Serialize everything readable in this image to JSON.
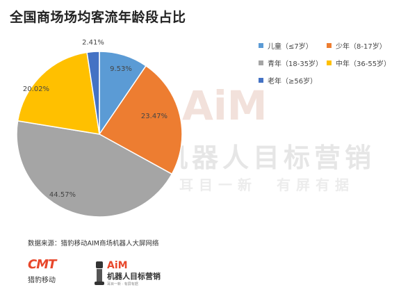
{
  "title": "全国商场场均客流年龄段占比",
  "chart_data": {
    "type": "pie",
    "title": "全国商场场均客流年龄段占比",
    "start_angle_deg": 0,
    "direction": "clockwise",
    "legend_position": "top-right",
    "slices": [
      {
        "label": "儿童（≤7岁）",
        "value": 9.53,
        "display": "9.53%",
        "color": "#5B9BD5"
      },
      {
        "label": "少年（8-17岁）",
        "value": 23.47,
        "display": "23.47%",
        "color": "#ED7D31"
      },
      {
        "label": "青年（18-35岁）",
        "value": 44.57,
        "display": "44.57%",
        "color": "#A5A5A5"
      },
      {
        "label": "中年（36-55岁）",
        "value": 20.02,
        "display": "20.02%",
        "color": "#FFC000"
      },
      {
        "label": "老年（≥56岁）",
        "value": 2.41,
        "display": "2.41%",
        "color": "#4472C4"
      }
    ]
  },
  "watermark": {
    "logo": "AiM",
    "line1": "机器人目标营销",
    "line2_left": "耳目一新",
    "line2_right": "有屏有据"
  },
  "source": "数据来源：猎豹移动AIM商场机器人大屏网络",
  "footer_logos": {
    "cheetah_mark": "CMT",
    "cheetah_text": "猎豹移动",
    "aim_brand": "AiM",
    "aim_text": "机器人目标营销",
    "aim_tagline": "耳目一新 · 有屏有据"
  }
}
